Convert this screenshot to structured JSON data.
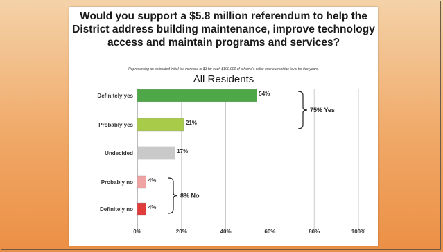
{
  "slide": {
    "title": "Would you support a $5.8 million referendum to help the District address building maintenance, improve technology access and maintain programs and services?",
    "subtitle": "Representing an estimated initial tax increase of $3 for each $100,000 of a home's value over current tax level for five years."
  },
  "chart_data": {
    "type": "bar",
    "orientation": "horizontal",
    "title": "All Residents",
    "xlabel": "",
    "ylabel": "",
    "categories": [
      "Definitely yes",
      "Probably yes",
      "Undecided",
      "Probably no",
      "Definitely no"
    ],
    "values": [
      54,
      21,
      17,
      4,
      4
    ],
    "value_labels": [
      "54%",
      "21%",
      "17%",
      "4%",
      "4%"
    ],
    "colors": [
      "#4fa847",
      "#a8cc4a",
      "#c9c9c9",
      "#f0a3a3",
      "#e03c3c"
    ],
    "xlim": [
      0,
      100
    ],
    "xticks": [
      "0%",
      "20%",
      "40%",
      "60%",
      "80%",
      "100%"
    ],
    "grid": true,
    "annotations": [
      {
        "text": "75% Yes",
        "categories": [
          "Definitely yes",
          "Probably yes"
        ]
      },
      {
        "text": "8% No",
        "categories": [
          "Probably no",
          "Definitely no"
        ]
      }
    ]
  }
}
